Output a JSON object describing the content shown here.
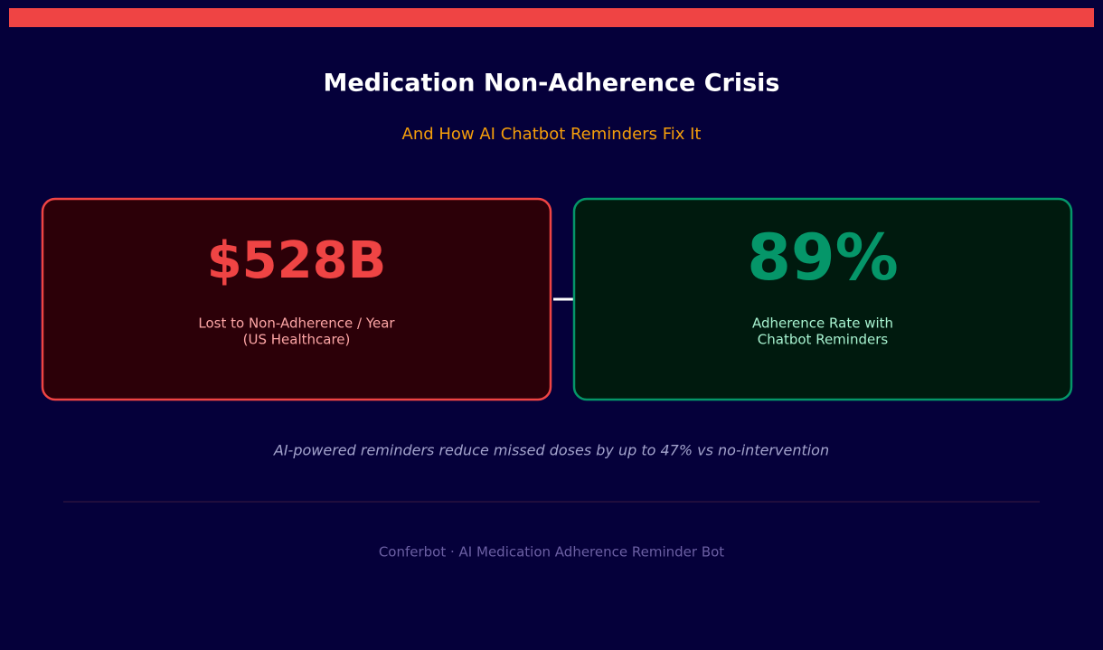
{
  "header": {
    "title": "Medication Non-Adherence Crisis",
    "subtitle": "And How AI Chatbot Reminders Fix It"
  },
  "cards": [
    {
      "value": "$528B",
      "label": [
        "Lost to Non-Adherence / Year",
        "(US Healthcare)"
      ]
    },
    {
      "value": "89%",
      "label": [
        "Adherence Rate with",
        "Chatbot Reminders"
      ]
    }
  ],
  "note": "AI-powered reminders reduce missed doses by up to 47% vs no-intervention",
  "footer": "Conferbot · AI Medication Adherence Reminder Bot"
}
